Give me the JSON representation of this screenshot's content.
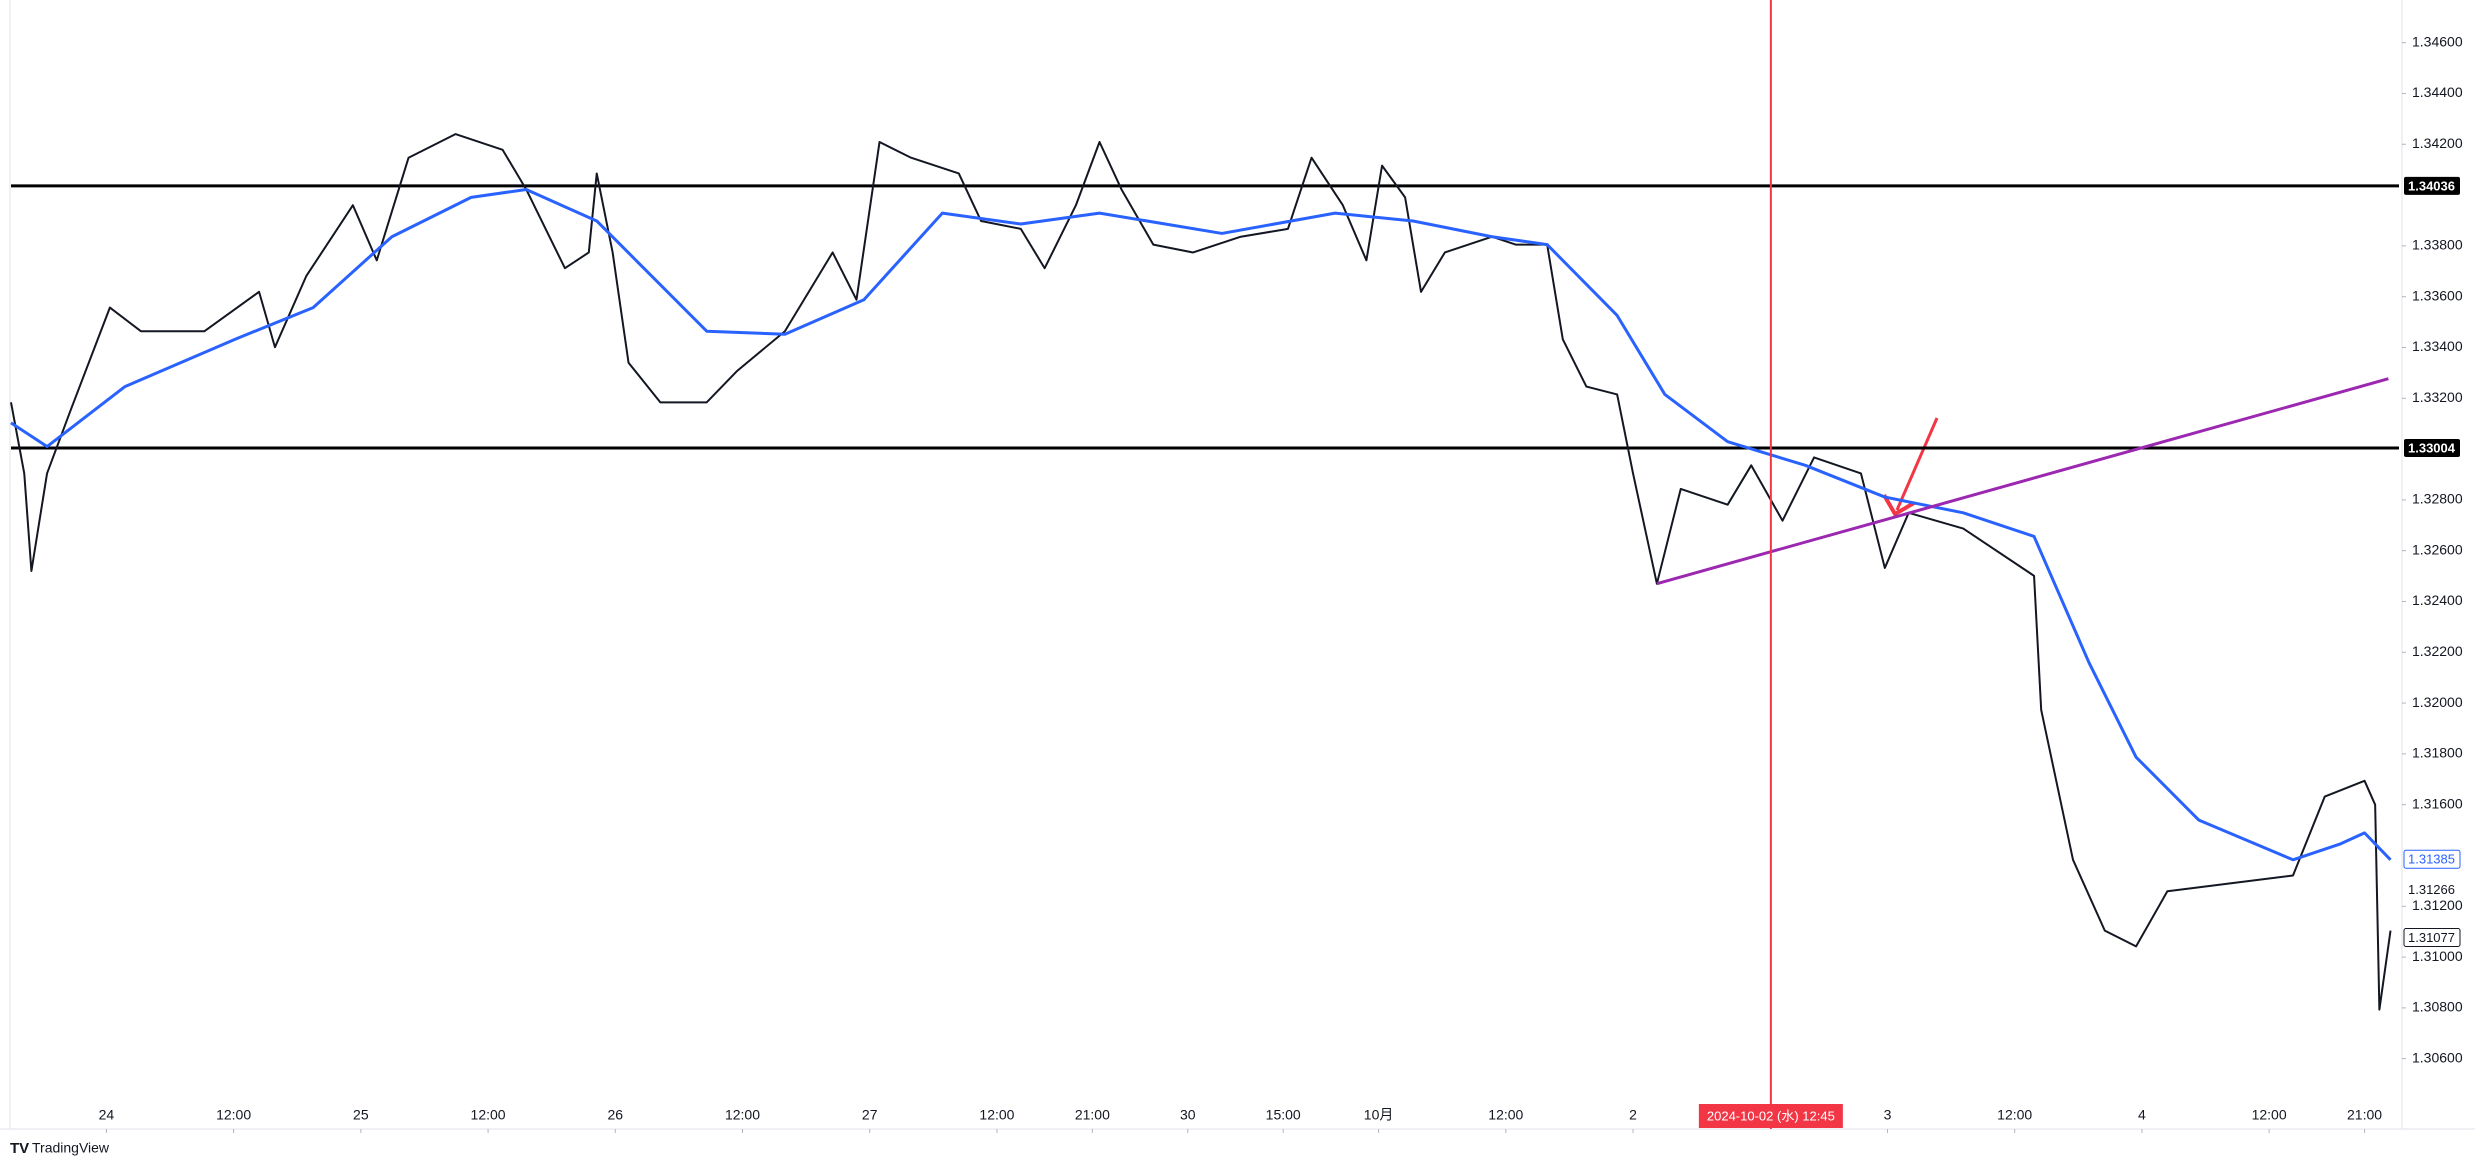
{
  "chart_data": {
    "type": "line",
    "xlim": [
      0,
      901
    ],
    "ylim": [
      1.30327,
      1.34768
    ],
    "xticks": [
      {
        "value": 36,
        "label": "24"
      },
      {
        "value": 84,
        "label": "12:00"
      },
      {
        "value": 132,
        "label": "25"
      },
      {
        "value": 180,
        "label": "12:00"
      },
      {
        "value": 228,
        "label": "26"
      },
      {
        "value": 276,
        "label": "12:00"
      },
      {
        "value": 324,
        "label": "27"
      },
      {
        "value": 372,
        "label": "12:00"
      },
      {
        "value": 408,
        "label": "21:00"
      },
      {
        "value": 444,
        "label": "30"
      },
      {
        "value": 480,
        "label": "15:00"
      },
      {
        "value": 516,
        "label": "10月"
      },
      {
        "value": 564,
        "label": "12:00"
      },
      {
        "value": 612,
        "label": "2"
      },
      {
        "value": 708,
        "label": "3"
      },
      {
        "value": 756,
        "label": "12:00"
      },
      {
        "value": 804,
        "label": "4"
      },
      {
        "value": 852,
        "label": "12:00"
      },
      {
        "value": 888,
        "label": "21:00"
      }
    ],
    "yticks": [
      {
        "value": 1.346,
        "label": "1.34600"
      },
      {
        "value": 1.344,
        "label": "1.34400"
      },
      {
        "value": 1.342,
        "label": "1.34200"
      },
      {
        "value": 1.338,
        "label": "1.33800"
      },
      {
        "value": 1.336,
        "label": "1.33600"
      },
      {
        "value": 1.334,
        "label": "1.33400"
      },
      {
        "value": 1.332,
        "label": "1.33200"
      },
      {
        "value": 1.328,
        "label": "1.32800"
      },
      {
        "value": 1.326,
        "label": "1.32600"
      },
      {
        "value": 1.324,
        "label": "1.32400"
      },
      {
        "value": 1.322,
        "label": "1.32200"
      },
      {
        "value": 1.32,
        "label": "1.32000"
      },
      {
        "value": 1.318,
        "label": "1.31800"
      },
      {
        "value": 1.316,
        "label": "1.31600"
      },
      {
        "value": 1.312,
        "label": "1.31200"
      },
      {
        "value": 1.31,
        "label": "1.31000"
      },
      {
        "value": 1.308,
        "label": "1.30800"
      },
      {
        "value": 1.306,
        "label": "1.30600"
      }
    ],
    "series": [
      {
        "color": "#131722",
        "x": [
          0,
          5,
          7.7,
          13.6,
          22.5,
          37.3,
          49,
          73,
          93.6,
          99.6,
          111.4,
          129,
          138,
          150,
          167.7,
          185.5,
          194.4,
          209,
          218,
          221,
          227,
          233,
          245,
          262.5,
          274,
          292,
          310,
          319,
          327.7,
          339.6,
          357.6,
          366,
          381,
          390,
          401.8,
          410.7,
          419,
          431,
          446,
          464,
          481.8,
          490.7,
          502.5,
          511.4,
          517.3,
          526,
          532,
          541,
          558.8,
          567.7,
          579.6,
          585.5,
          594.4,
          606,
          612,
          621,
          630,
          647.7,
          656.6,
          668.4,
          680.3,
          698,
          707,
          716,
          736.6,
          763.3,
          766,
          778,
          790,
          801.8,
          813.6,
          837.3,
          861,
          873,
          888,
          892,
          893.6,
          897.8
        ],
        "values": [
          1.33184,
          1.32904,
          1.3252,
          1.32904,
          1.33153,
          1.33557,
          1.33464,
          1.33464,
          1.33619,
          1.33401,
          1.33681,
          1.3396,
          1.33743,
          1.34147,
          1.3424,
          1.34178,
          1.34022,
          1.33712,
          1.33774,
          1.34085,
          1.33774,
          1.3334,
          1.33184,
          1.33184,
          1.33308,
          1.33464,
          1.33774,
          1.33588,
          1.34209,
          1.34147,
          1.34085,
          1.33898,
          1.33867,
          1.33712,
          1.3396,
          1.34209,
          1.34022,
          1.33805,
          1.33774,
          1.33836,
          1.33867,
          1.34147,
          1.3396,
          1.33743,
          1.34116,
          1.33991,
          1.33619,
          1.33774,
          1.33836,
          1.33805,
          1.33805,
          1.33432,
          1.33246,
          1.33215,
          1.32904,
          1.3247,
          1.32843,
          1.32781,
          1.32936,
          1.32718,
          1.32967,
          1.32904,
          1.32532,
          1.32749,
          1.32687,
          1.32501,
          1.31973,
          1.31383,
          1.31104,
          1.31042,
          1.31259,
          1.3129,
          1.31321,
          1.31632,
          1.31694,
          1.316,
          1.30793,
          1.31104
        ]
      },
      {
        "color": "#2962ff",
        "x": [
          0,
          13.6,
          43,
          84.7,
          114,
          143.7,
          173.6,
          194.4,
          221,
          262.5,
          292,
          321.8,
          351.4,
          381,
          410.7,
          456.9,
          499.6,
          529,
          558.8,
          579.6,
          606,
          624,
          647.7,
          677,
          707,
          736.6,
          763.3,
          784,
          801.8,
          825.5,
          861,
          879,
          888,
          897.8
        ],
        "values": [
          1.33103,
          1.3301,
          1.33246,
          1.33433,
          1.33557,
          1.33836,
          1.33991,
          1.34022,
          1.33898,
          1.33464,
          1.33452,
          1.33588,
          1.33929,
          1.33886,
          1.33929,
          1.33849,
          1.33929,
          1.33898,
          1.33836,
          1.33805,
          1.33526,
          1.33215,
          1.33029,
          1.32936,
          1.32811,
          1.32749,
          1.32656,
          1.3216,
          1.31787,
          1.31539,
          1.31383,
          1.31446,
          1.31489,
          1.31383
        ]
      }
    ],
    "levels": [
      {
        "value": 1.34036,
        "label": "1.34036",
        "color": "#000000"
      },
      {
        "value": 1.33004,
        "label": "1.33004",
        "color": "#000000"
      }
    ],
    "trendline": {
      "x": [
        621,
        897
      ],
      "values": [
        1.3247,
        1.33277
      ],
      "color": "#9c27b0"
    },
    "cursor": {
      "x": 664,
      "label": "2024-10-02 (水)  12:45",
      "color": "#f23645"
    },
    "price_labels": [
      {
        "value": 1.31385,
        "label": "1.31385",
        "color": "#2962ff",
        "boxed": true
      },
      {
        "value": 1.31266,
        "label": "1.31266",
        "color": "#131722",
        "boxed": false
      },
      {
        "value": 1.31077,
        "label": "1.31077",
        "color": "#131722",
        "boxed": true
      }
    ],
    "branding": "TradingView"
  }
}
